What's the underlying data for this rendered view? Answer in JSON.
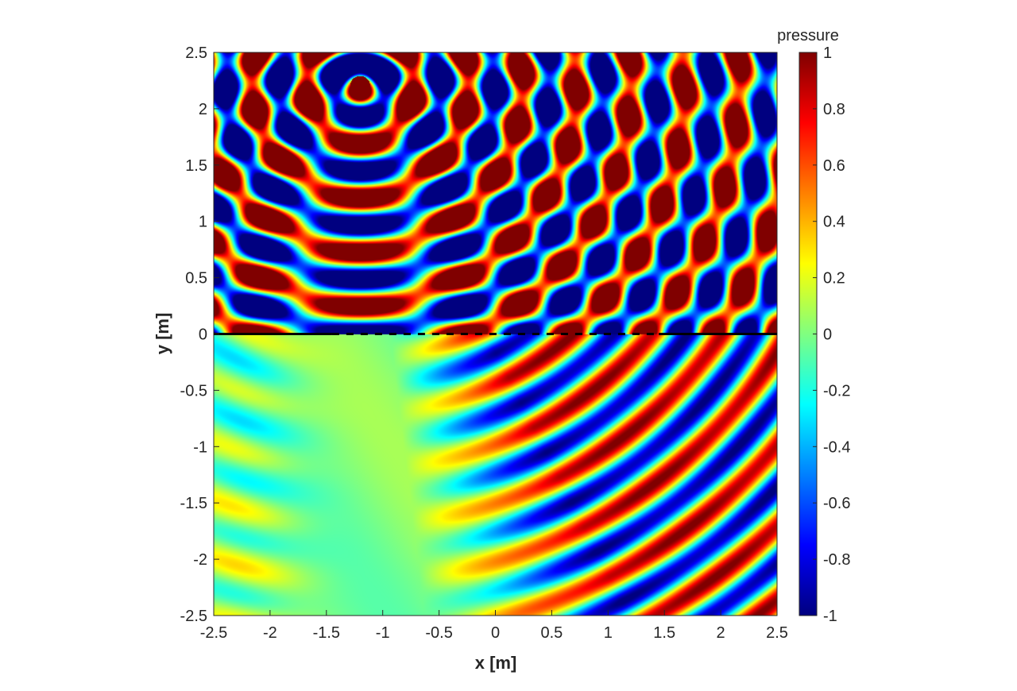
{
  "chart_data": {
    "type": "heatmap",
    "xlabel": "x [m]",
    "ylabel": "y [m]",
    "xlim": [
      -2.5,
      2.5
    ],
    "ylim": [
      -2.5,
      2.5
    ],
    "xticks": [
      -2.5,
      -2,
      -1.5,
      -1,
      -0.5,
      0,
      0.5,
      1,
      1.5,
      2,
      2.5
    ],
    "xtick_labels": [
      "-2.5",
      "-2",
      "-1.5",
      "-1",
      "-0.5",
      "0",
      "0.5",
      "1",
      "1.5",
      "2",
      "2.5"
    ],
    "yticks": [
      2.5,
      2,
      1.5,
      1,
      0.5,
      0,
      -0.5,
      -1,
      -1.5,
      -2,
      -2.5
    ],
    "ytick_labels": [
      "2.5",
      "2",
      "1.5",
      "1",
      "0.5",
      "0",
      "-0.5",
      "-1",
      "-1.5",
      "-2",
      "-2.5"
    ],
    "colorbar": {
      "title": "pressure",
      "colormap": "jet",
      "limits": [
        -1,
        1
      ],
      "ticks": [
        1,
        0.8,
        0.6,
        0.4,
        0.2,
        0,
        -0.2,
        -0.4,
        -0.6,
        -0.8,
        -1
      ],
      "tick_labels": [
        "1",
        "0.8",
        "0.6",
        "0.4",
        "0.2",
        "0",
        "-0.2",
        "-0.4",
        "-0.6",
        "-0.8",
        "-1"
      ]
    },
    "field": {
      "source": [
        -1.2,
        2.2
      ],
      "boundary_y": 0,
      "boundary_solid_segments": [
        [
          -2.5,
          -1.45
        ],
        [
          1.45,
          2.5
        ]
      ],
      "boundary_dashed_segment": [
        -1.45,
        1.45
      ],
      "boundary_color": "#000000"
    }
  }
}
